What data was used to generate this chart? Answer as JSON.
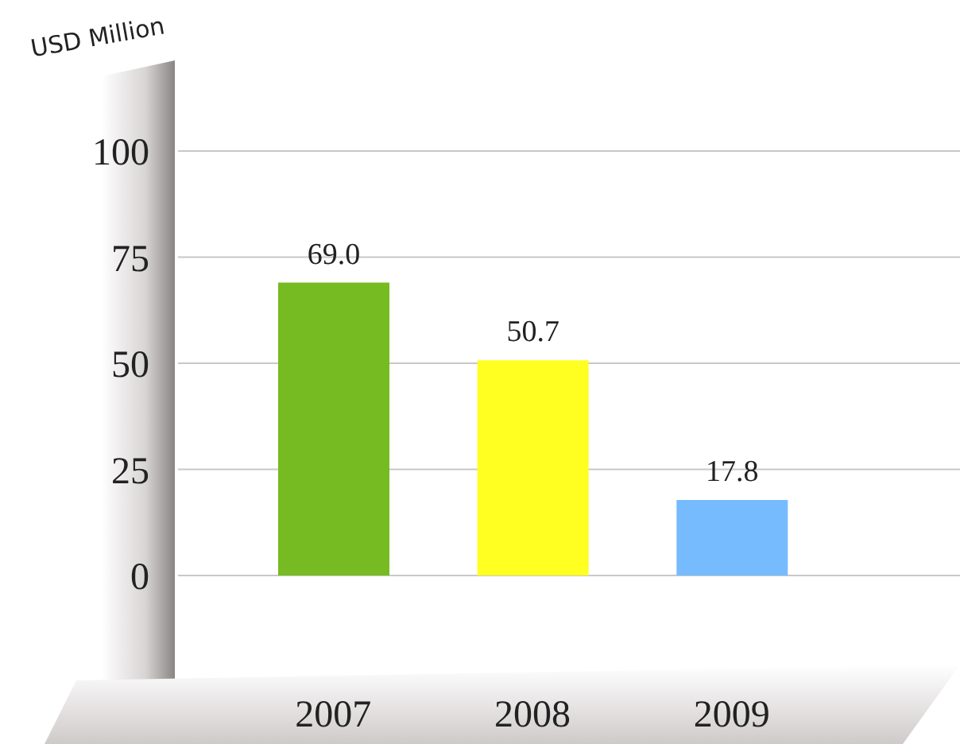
{
  "chart_data": {
    "type": "bar",
    "ylabel": "USD Million",
    "categories": [
      "2007",
      "2008",
      "2009"
    ],
    "values": [
      69.0,
      50.7,
      17.8
    ],
    "value_labels": [
      "69.0",
      "50.7",
      "17.8"
    ],
    "colors": [
      "#77bb22",
      "#ffff22",
      "#77bbff"
    ],
    "ylim": [
      0,
      100
    ],
    "yticks": [
      0,
      25,
      50,
      75,
      100
    ],
    "grid": "y"
  }
}
